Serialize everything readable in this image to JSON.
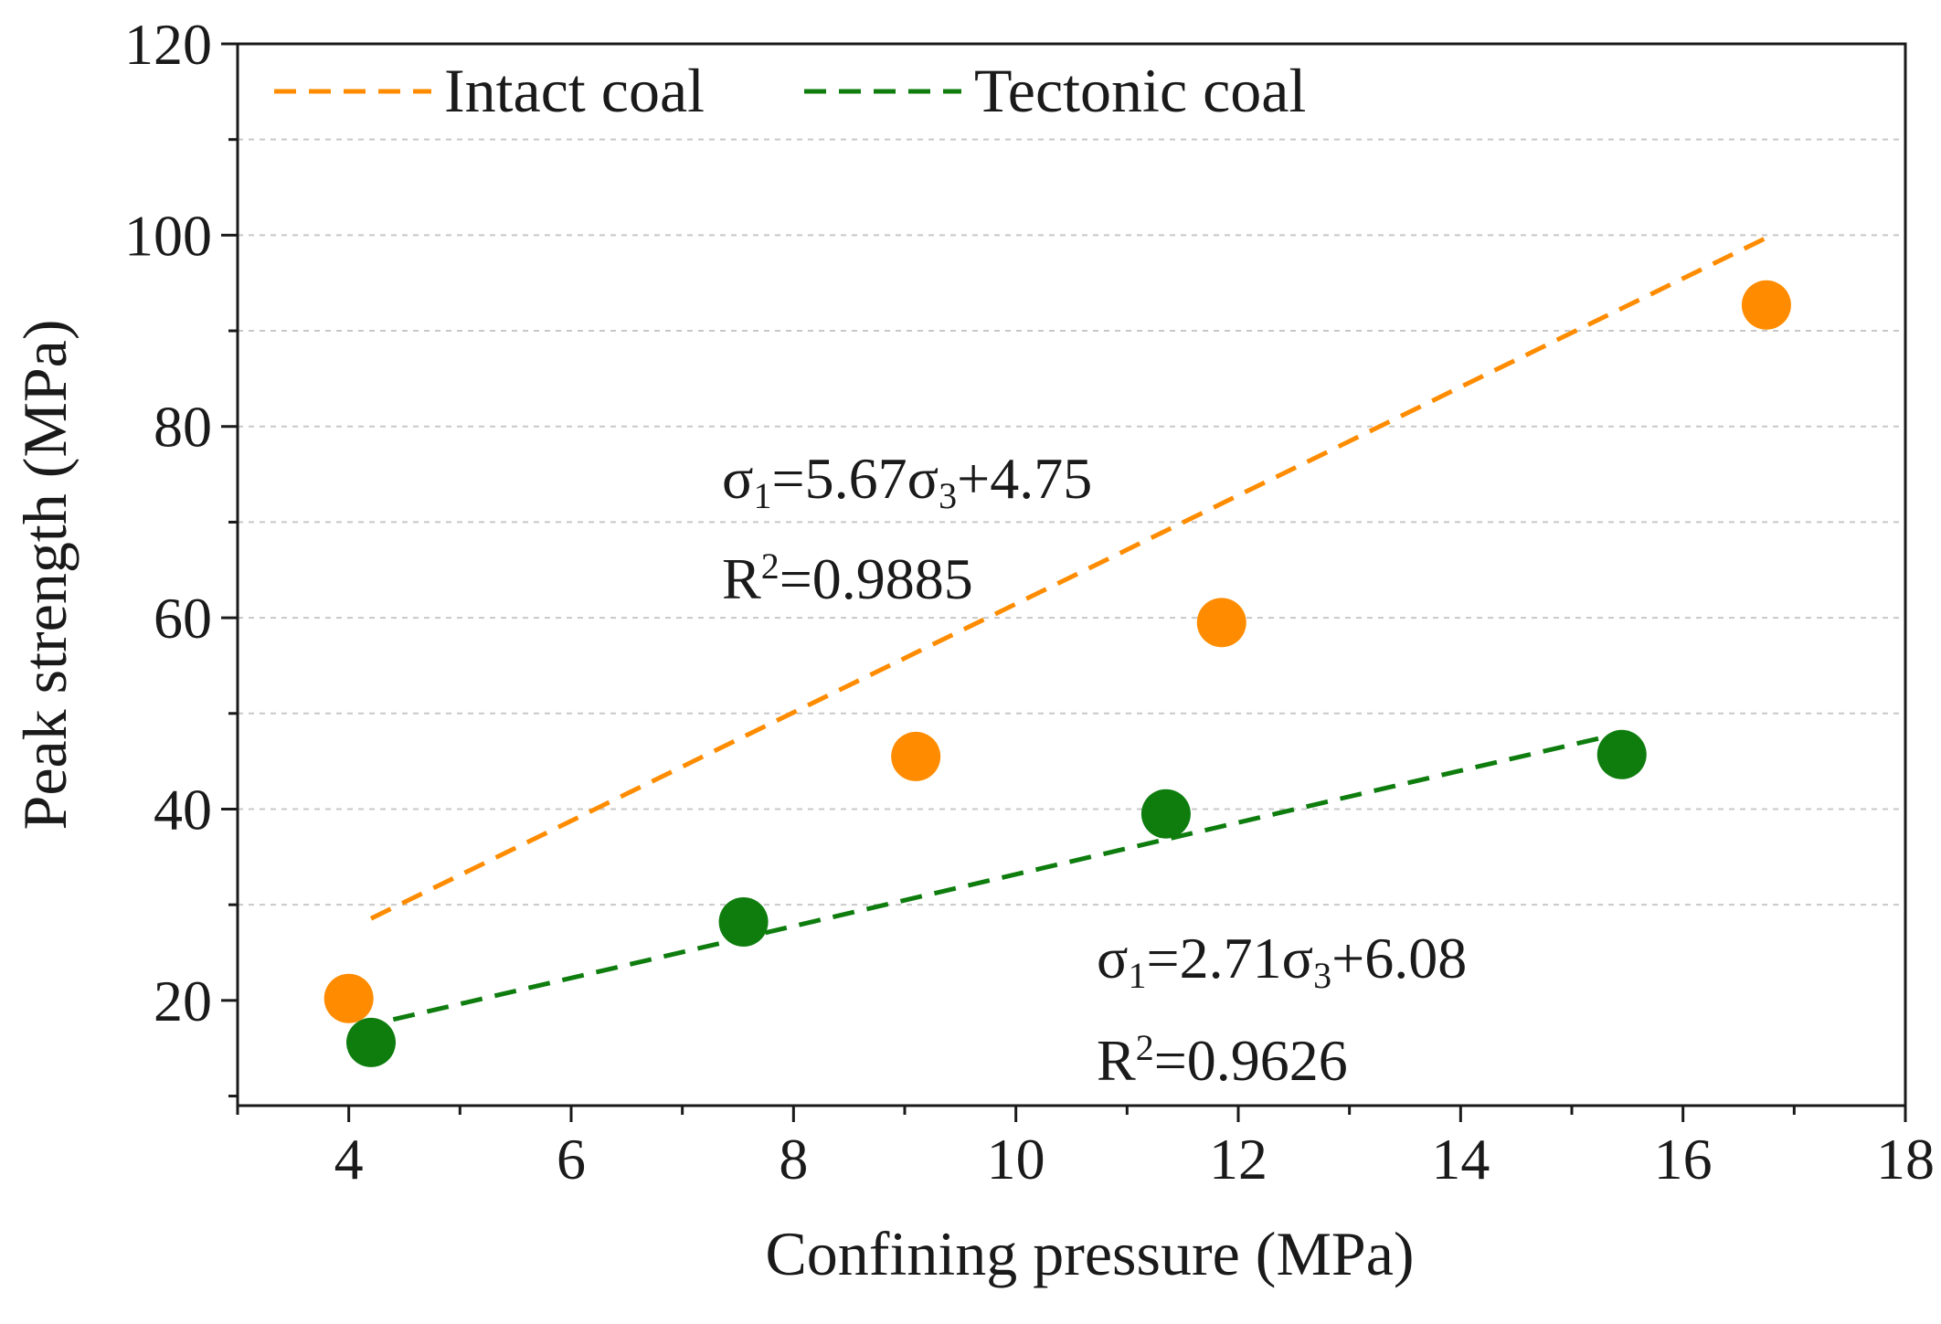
{
  "colors": {
    "intact": "#ff8c00",
    "tectonic": "#0e7d0e",
    "grid": "#c8c8c8",
    "axis": "#1a1a1a"
  },
  "chart_data": {
    "type": "scatter",
    "xlabel": "Confining pressure (MPa)",
    "ylabel": "Peak strength (MPa)",
    "xlim": [
      3,
      18
    ],
    "ylim": [
      9,
      120
    ],
    "xticks": [
      4,
      6,
      8,
      10,
      12,
      14,
      16,
      18
    ],
    "yticks": [
      20,
      40,
      60,
      80,
      100,
      120
    ],
    "y_gridlines": [
      30,
      40,
      50,
      60,
      70,
      80,
      90,
      100,
      110
    ],
    "legend_position": "top-left",
    "series": [
      {
        "name": "Intact coal",
        "color_key": "intact",
        "x": [
          4.0,
          9.1,
          11.85,
          16.75
        ],
        "y": [
          20.2,
          45.5,
          59.5,
          92.7
        ],
        "fit": {
          "slope": 5.67,
          "intercept": 4.75,
          "from": 4.2,
          "to": 16.8
        },
        "equation": {
          "lhs": "σ",
          "lhs_sub": "1",
          "mid": "=5.67σ",
          "mid_sub": "3",
          "rhs": "+4.75"
        },
        "r2": {
          "base": "R",
          "sup": "2",
          "rest": "=0.9885"
        }
      },
      {
        "name": "Tectonic coal",
        "color_key": "tectonic",
        "x": [
          4.2,
          7.55,
          11.35,
          15.45
        ],
        "y": [
          15.6,
          28.2,
          39.5,
          45.7
        ],
        "fit": {
          "slope": 2.71,
          "intercept": 6.08,
          "from": 4.4,
          "to": 15.4
        },
        "equation": {
          "lhs": "σ",
          "lhs_sub": "1",
          "mid": "=2.71σ",
          "mid_sub": "3",
          "rhs": "+6.08"
        },
        "r2": {
          "base": "R",
          "sup": "2",
          "rest": "=0.9626"
        }
      }
    ]
  }
}
